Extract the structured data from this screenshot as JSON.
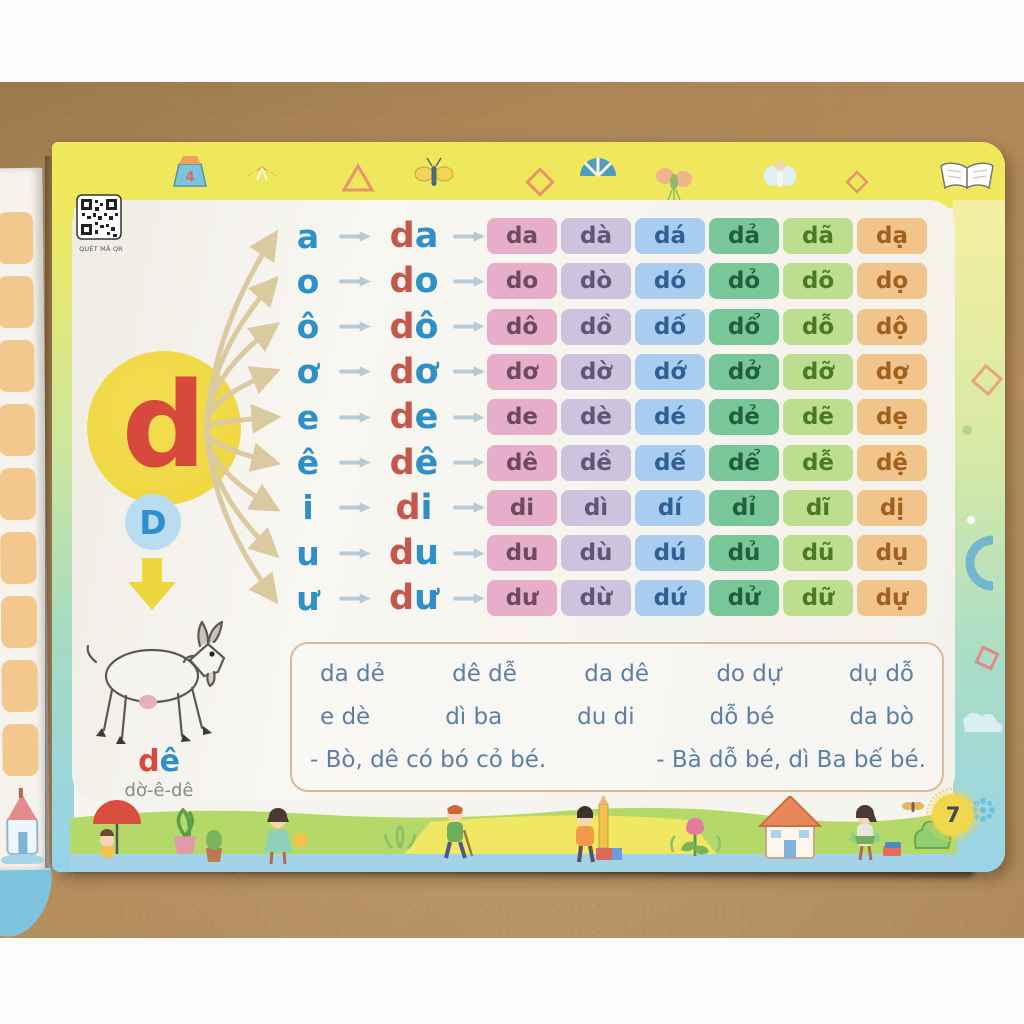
{
  "book_page": {
    "qr_label": "QUÉT MÃ QR",
    "page_number": "7",
    "letter": {
      "lowercase": "d",
      "uppercase": "D"
    },
    "keyword": {
      "text": "dê",
      "initial": "d",
      "rest": "ê"
    },
    "spelling": "dờ-ê-dê",
    "combination_rows": [
      {
        "vowel": "a",
        "combo": "da",
        "tones": [
          "da",
          "dà",
          "dá",
          "dả",
          "dã",
          "dạ"
        ]
      },
      {
        "vowel": "o",
        "combo": "do",
        "tones": [
          "do",
          "dò",
          "dó",
          "dỏ",
          "dõ",
          "dọ"
        ]
      },
      {
        "vowel": "ô",
        "combo": "dô",
        "tones": [
          "dô",
          "dồ",
          "dố",
          "dổ",
          "dỗ",
          "dộ"
        ]
      },
      {
        "vowel": "ơ",
        "combo": "dơ",
        "tones": [
          "dơ",
          "dờ",
          "dớ",
          "dở",
          "dỡ",
          "dợ"
        ]
      },
      {
        "vowel": "e",
        "combo": "de",
        "tones": [
          "de",
          "dè",
          "dé",
          "dẻ",
          "dẽ",
          "dẹ"
        ]
      },
      {
        "vowel": "ê",
        "combo": "dê",
        "tones": [
          "dê",
          "dề",
          "dế",
          "dể",
          "dễ",
          "dệ"
        ]
      },
      {
        "vowel": "i",
        "combo": "di",
        "tones": [
          "di",
          "dì",
          "dí",
          "dỉ",
          "dĩ",
          "dị"
        ]
      },
      {
        "vowel": "u",
        "combo": "du",
        "tones": [
          "du",
          "dù",
          "dú",
          "dủ",
          "dũ",
          "dụ"
        ]
      },
      {
        "vowel": "ư",
        "combo": "dư",
        "tones": [
          "dư",
          "dừ",
          "dứ",
          "dử",
          "dữ",
          "dự"
        ]
      }
    ],
    "practice": {
      "words_row1": [
        "da dẻ",
        "dê dễ",
        "da dê",
        "do dự",
        "dụ dỗ"
      ],
      "words_row2": [
        "e dè",
        "dì ba",
        "du di",
        "dỗ bé",
        "da bò"
      ],
      "sentences": [
        "- Bò, dê có bó cỏ bé.",
        "- Bà dỗ bé, dì Ba bế bé."
      ]
    },
    "decor_icons_top": [
      "toy-block",
      "orange-fan",
      "triangle-outline",
      "butterfly",
      "diamond-outline",
      "beach-ball",
      "moth",
      "fairy",
      "small-diamond",
      "open-book"
    ],
    "decor_scene_bottom": [
      "kid-with-umbrella",
      "potted-plants",
      "girl-watering",
      "boy-walking",
      "boy-with-pencil",
      "tulip",
      "house",
      "girl-reading",
      "bush",
      "kids-pair"
    ],
    "colors": {
      "band_yellow": "#f0e85c",
      "panel": "#f6f4ef",
      "vowel_blue": "#2f8fc7",
      "init_red": "#c4584c",
      "circle_yellow": "#eed63c",
      "circle_letter": "#d7493a",
      "badge_bg": "#b9dcf2",
      "badge_text": "#2e8fd0",
      "fan_arrow": "#dbc9a0",
      "row_arrow": "#b6cad7",
      "practice_text": "#5b7fa6",
      "practice_border": "#dcb896",
      "badge7_bg": "#f0d74b",
      "badge7_text": "#44445a",
      "grass": "#b5d969",
      "sand": "#f0e763",
      "water": "#a3d3e6",
      "grid_columns": [
        {
          "fill": "#e6aec9",
          "text": "#6e4a5e"
        },
        {
          "fill": "#cbc4dc",
          "text": "#5d5678"
        },
        {
          "fill": "#a9cdee",
          "text": "#2f5f96"
        },
        {
          "fill": "#79c698",
          "text": "#215e40"
        },
        {
          "fill": "#bdde8e",
          "text": "#4a7a28"
        },
        {
          "fill": "#f0c48b",
          "text": "#a2601f"
        }
      ]
    }
  }
}
